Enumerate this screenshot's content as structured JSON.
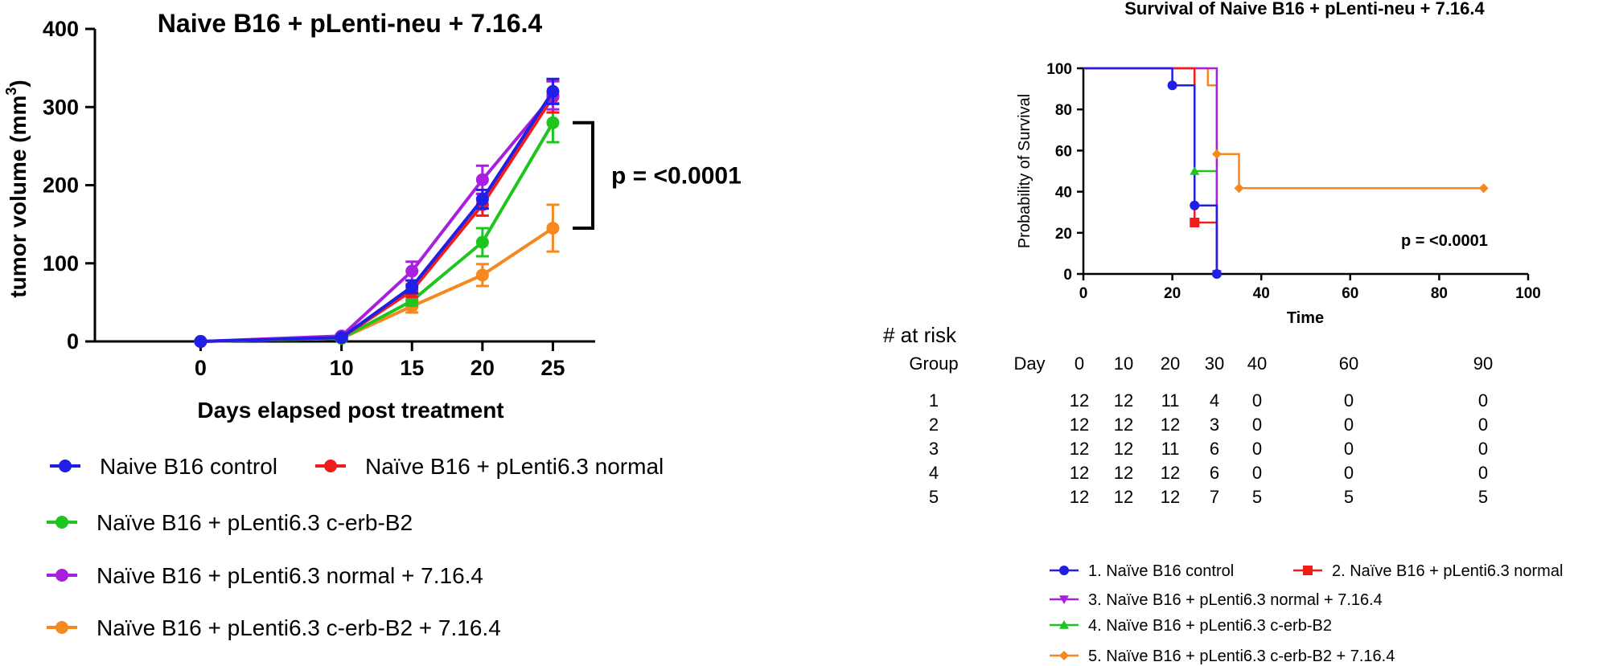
{
  "colors": {
    "blue": "#1f1fe6",
    "red": "#f01c1c",
    "green": "#1fc41f",
    "purple": "#a81fe0",
    "orange": "#f5891f",
    "black": "#000000"
  },
  "chart_data": [
    {
      "type": "line",
      "title": "Naive B16 + pLenti-neu + 7.16.4",
      "xlabel": "Days elapsed post treatment",
      "ylabel": "tumor volume (mm",
      "ylabel_sup": "3",
      "ylabel_close": ")",
      "x": [
        0,
        10,
        15,
        20,
        25
      ],
      "xlim": [
        -7.5,
        28
      ],
      "ylim": [
        0,
        400
      ],
      "xticks": [
        "0",
        "10",
        "15",
        "20",
        "25"
      ],
      "yticks": [
        "0",
        "100",
        "200",
        "300",
        "400"
      ],
      "significance": "p = <0.0001",
      "significance_range": [
        145,
        280
      ],
      "series": [
        {
          "name": "Naive B16 control",
          "color": "blue",
          "marker": "circle",
          "values": [
            0,
            5,
            70,
            182,
            320
          ],
          "error": [
            0,
            2,
            8,
            12,
            16
          ]
        },
        {
          "name": "Naïve B16 + pLenti6.3 normal",
          "color": "red",
          "marker": "circle",
          "values": [
            0,
            5,
            65,
            175,
            313
          ],
          "error": [
            0,
            2,
            8,
            14,
            20
          ]
        },
        {
          "name": "Naïve B16 + pLenti6.3 c-erb-B2",
          "color": "green",
          "marker": "circle",
          "values": [
            0,
            4,
            52,
            127,
            280
          ],
          "error": [
            0,
            2,
            6,
            18,
            25
          ]
        },
        {
          "name": "Naïve B16 + pLenti6.3 normal + 7.16.4",
          "color": "purple",
          "marker": "circle",
          "values": [
            0,
            7,
            90,
            207,
            315
          ],
          "error": [
            0,
            2,
            12,
            18,
            18
          ]
        },
        {
          "name": "Naïve B16 + pLenti6.3 c-erb-B2 + 7.16.4",
          "color": "orange",
          "marker": "circle",
          "values": [
            0,
            4,
            45,
            85,
            145
          ],
          "error": [
            0,
            2,
            8,
            14,
            30
          ]
        }
      ],
      "legend": [
        [
          "Naive B16 control",
          "Naïve B16 + pLenti6.3 normal"
        ],
        [
          "Naïve B16 + pLenti6.3 c-erb-B2"
        ],
        [
          "Naïve B16 + pLenti6.3 normal + 7.16.4"
        ],
        [
          "Naïve B16 + pLenti6.3 c-erb-B2 + 7.16.4"
        ]
      ]
    },
    {
      "type": "line",
      "subtype": "step",
      "title": "Survival of Naive B16 + pLenti-neu + 7.16.4",
      "xlabel": "Time",
      "ylabel": "Probability of Survival",
      "xlim": [
        0,
        100
      ],
      "ylim": [
        0,
        100
      ],
      "xticks": [
        "0",
        "20",
        "40",
        "60",
        "80",
        "100"
      ],
      "yticks": [
        "0",
        "20",
        "40",
        "60",
        "80",
        "100"
      ],
      "significance": "p = <0.0001",
      "series": [
        {
          "name": "1. Naïve B16 control",
          "color": "blue",
          "marker": "circle",
          "steps": [
            [
              0,
              100
            ],
            [
              20,
              91.7
            ],
            [
              25,
              33.3
            ],
            [
              30,
              0
            ]
          ]
        },
        {
          "name": "2. Naïve B16 + pLenti6.3 normal",
          "color": "red",
          "marker": "square",
          "steps": [
            [
              0,
              100
            ],
            [
              25,
              25
            ],
            [
              30,
              0
            ]
          ]
        },
        {
          "name": "3. Naïve B16 + pLenti6.3 normal + 7.16.4",
          "color": "purple",
          "marker": "triangle-down",
          "steps": [
            [
              0,
              100
            ],
            [
              30,
              0
            ]
          ]
        },
        {
          "name": "4. Naïve B16 + pLenti6.3 c-erb-B2",
          "color": "green",
          "marker": "triangle-up",
          "steps": [
            [
              0,
              100
            ],
            [
              25,
              50
            ],
            [
              30,
              0
            ]
          ]
        },
        {
          "name": "5. Naïve B16 + pLenti6.3 c-erb-B2 + 7.16.4",
          "color": "orange",
          "marker": "diamond",
          "steps": [
            [
              0,
              100
            ],
            [
              28,
              91.7
            ],
            [
              30,
              58.3
            ],
            [
              35,
              41.7
            ],
            [
              90,
              41.7
            ]
          ]
        }
      ],
      "markers": [
        {
          "series": 0,
          "x": 20,
          "y": 91.7
        },
        {
          "series": 0,
          "x": 25,
          "y": 33.3
        },
        {
          "series": 1,
          "x": 25,
          "y": 25
        },
        {
          "series": 2,
          "x": 30,
          "y": 0
        },
        {
          "series": 3,
          "x": 25,
          "y": 50
        },
        {
          "series": 0,
          "x": 30,
          "y": 0
        },
        {
          "series": 4,
          "x": 30,
          "y": 58.3
        },
        {
          "series": 4,
          "x": 35,
          "y": 41.7
        },
        {
          "series": 4,
          "x": 90,
          "y": 41.7
        }
      ],
      "legend": [
        [
          0,
          1
        ],
        [
          2
        ],
        [
          3
        ],
        [
          4
        ]
      ]
    }
  ],
  "risk_table": {
    "title": "# at risk",
    "group_header": "Group",
    "day_header": "Day",
    "days": [
      "0",
      "10",
      "20",
      "30",
      "40",
      "60",
      "90"
    ],
    "rows": [
      {
        "group": "1",
        "values": [
          "12",
          "12",
          "11",
          "4",
          "0",
          "0",
          "0"
        ]
      },
      {
        "group": "2",
        "values": [
          "12",
          "12",
          "12",
          "3",
          "0",
          "0",
          "0"
        ]
      },
      {
        "group": "3",
        "values": [
          "12",
          "12",
          "11",
          "6",
          "0",
          "0",
          "0"
        ]
      },
      {
        "group": "4",
        "values": [
          "12",
          "12",
          "12",
          "6",
          "0",
          "0",
          "0"
        ]
      },
      {
        "group": "5",
        "values": [
          "12",
          "12",
          "12",
          "7",
          "5",
          "5",
          "5"
        ]
      }
    ]
  }
}
